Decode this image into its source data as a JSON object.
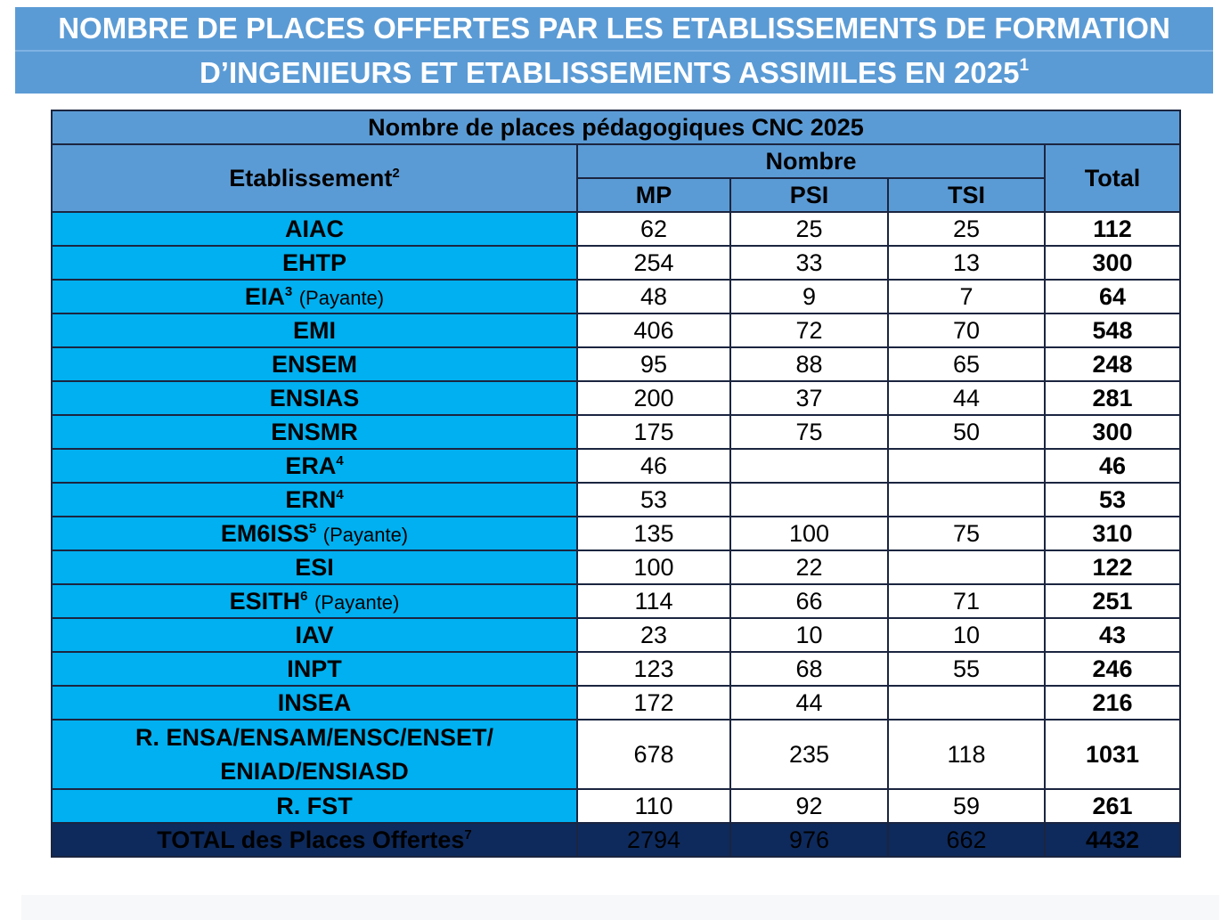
{
  "banner": {
    "line1": "NOMBRE DE PLACES OFFERTES PAR LES ETABLISSEMENTS DE FORMATION",
    "line2": "D’INGENIEURS ET ETABLISSEMENTS ASSIMILES EN 2025",
    "line2_sup": "1"
  },
  "table": {
    "caption": "Nombre de places pédagogiques CNC 2025",
    "headers": {
      "etablissement": "Etablissement",
      "etablissement_sup": "2",
      "nombre": "Nombre",
      "mp": "MP",
      "psi": "PSI",
      "tsi": "TSI",
      "total": "Total"
    },
    "rows": [
      {
        "name": "AIAC",
        "sup": "",
        "note": "",
        "mp": "62",
        "psi": "25",
        "tsi": "25",
        "total": "112"
      },
      {
        "name": "EHTP",
        "sup": "",
        "note": "",
        "mp": "254",
        "psi": "33",
        "tsi": "13",
        "total": "300"
      },
      {
        "name": "EIA",
        "sup": "3",
        "note": "(Payante)",
        "mp": "48",
        "psi": "9",
        "tsi": "7",
        "total": "64"
      },
      {
        "name": "EMI",
        "sup": "",
        "note": "",
        "mp": "406",
        "psi": "72",
        "tsi": "70",
        "total": "548"
      },
      {
        "name": "ENSEM",
        "sup": "",
        "note": "",
        "mp": "95",
        "psi": "88",
        "tsi": "65",
        "total": "248"
      },
      {
        "name": "ENSIAS",
        "sup": "",
        "note": "",
        "mp": "200",
        "psi": "37",
        "tsi": "44",
        "total": "281"
      },
      {
        "name": "ENSMR",
        "sup": "",
        "note": "",
        "mp": "175",
        "psi": "75",
        "tsi": "50",
        "total": "300"
      },
      {
        "name": "ERA",
        "sup": "4",
        "note": "",
        "mp": "46",
        "psi": "",
        "tsi": "",
        "total": "46"
      },
      {
        "name": "ERN",
        "sup": "4",
        "note": "",
        "mp": "53",
        "psi": "",
        "tsi": "",
        "total": "53"
      },
      {
        "name": "EM6ISS",
        "sup": "5",
        "note": "(Payante)",
        "mp": "135",
        "psi": "100",
        "tsi": "75",
        "total": "310"
      },
      {
        "name": "ESI",
        "sup": "",
        "note": "",
        "mp": "100",
        "psi": "22",
        "tsi": "",
        "total": "122"
      },
      {
        "name": "ESITH",
        "sup": "6",
        "note": "(Payante)",
        "mp": "114",
        "psi": "66",
        "tsi": "71",
        "total": "251"
      },
      {
        "name": "IAV",
        "sup": "",
        "note": "",
        "mp": "23",
        "psi": "10",
        "tsi": "10",
        "total": "43"
      },
      {
        "name": "INPT",
        "sup": "",
        "note": "",
        "mp": "123",
        "psi": "68",
        "tsi": "55",
        "total": "246"
      },
      {
        "name": "INSEA",
        "sup": "",
        "note": "",
        "mp": "172",
        "psi": "44",
        "tsi": "",
        "total": "216"
      },
      {
        "name": "R. ENSA/ENSAM/ENSC/ENSET/ ENIAD/ENSIASD",
        "sup": "",
        "note": "",
        "mp": "678",
        "psi": "235",
        "tsi": "118",
        "total": "1031",
        "tall": true
      },
      {
        "name": "R. FST",
        "sup": "",
        "note": "",
        "mp": "110",
        "psi": "92",
        "tsi": "59",
        "total": "261"
      }
    ],
    "total_row": {
      "label": "TOTAL des Places Offertes",
      "sup": "7",
      "mp": "2794",
      "psi": "976",
      "tsi": "662",
      "total": "4432"
    }
  },
  "colors": {
    "header_blue": "#5b9bd5",
    "name_cyan": "#00b0f0",
    "total_navy": "#0e2a5c"
  }
}
